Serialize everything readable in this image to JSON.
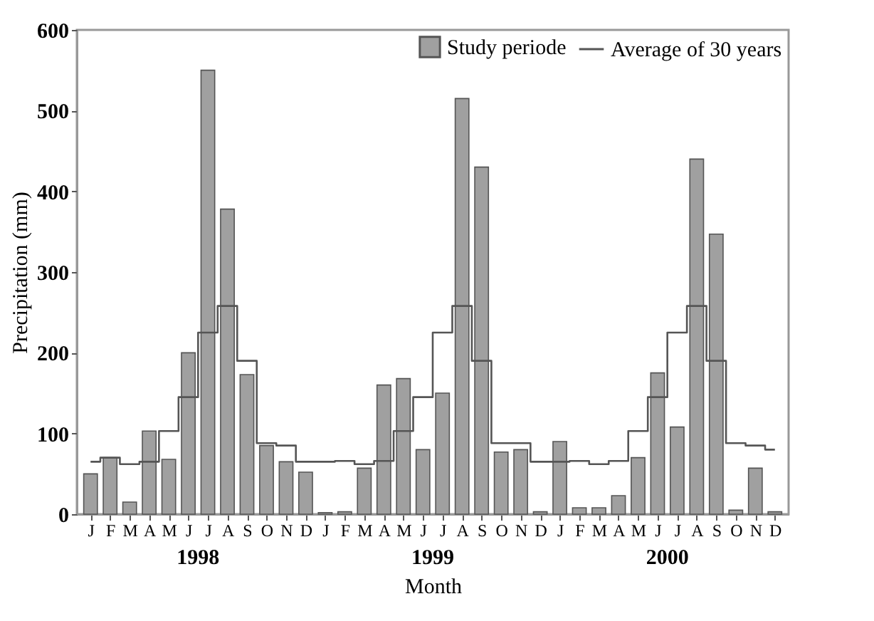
{
  "chart_data": {
    "type": "bar",
    "xlabel": "Month",
    "ylabel": "Precipitation (mm)",
    "categories": [
      "J",
      "F",
      "M",
      "A",
      "M",
      "J",
      "J",
      "A",
      "S",
      "O",
      "N",
      "D",
      "J",
      "F",
      "M",
      "A",
      "M",
      "J",
      "J",
      "A",
      "S",
      "O",
      "N",
      "D",
      "J",
      "F",
      "M",
      "A",
      "M",
      "J",
      "J",
      "A",
      "S",
      "O",
      "N",
      "D"
    ],
    "series": [
      {
        "name": "Study periode",
        "color": "#a0a0a0",
        "values": [
          50,
          70,
          15,
          103,
          68,
          200,
          550,
          378,
          173,
          85,
          65,
          52,
          2,
          3,
          57,
          160,
          168,
          80,
          150,
          515,
          430,
          77,
          80,
          3,
          90,
          8,
          8,
          23,
          70,
          175,
          108,
          440,
          347,
          5,
          57,
          3
        ]
      },
      {
        "name": "Average of 30 years",
        "type": "step",
        "color": "#555555",
        "values": [
          65,
          70,
          62,
          65,
          103,
          145,
          225,
          258,
          190,
          88,
          85,
          65,
          65,
          66,
          62,
          66,
          103,
          145,
          225,
          258,
          190,
          88,
          88,
          65,
          65,
          66,
          62,
          66,
          103,
          145,
          225,
          258,
          190,
          88,
          85,
          80
        ]
      }
    ],
    "annotations": [
      "1998",
      "1999",
      "2000"
    ],
    "ylim": [
      0,
      600
    ],
    "yticks": [
      0,
      100,
      200,
      300,
      400,
      500,
      600
    ],
    "legend": "top right"
  }
}
